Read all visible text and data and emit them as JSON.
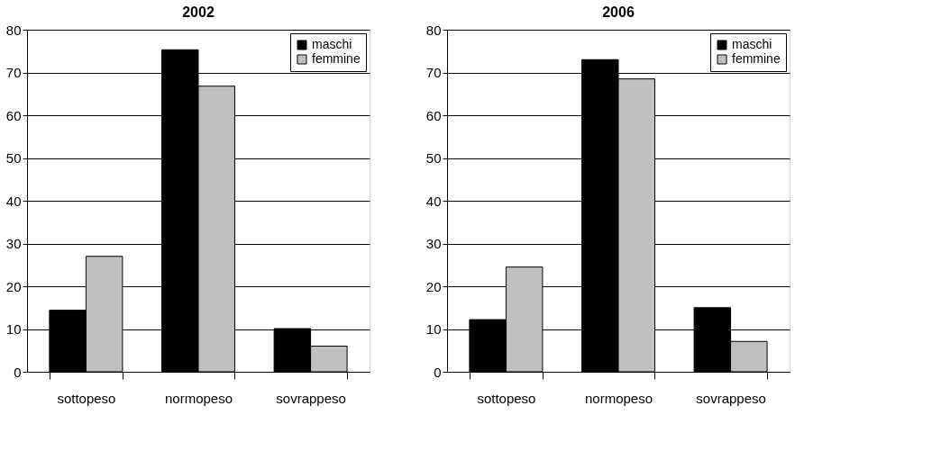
{
  "chart_data": [
    {
      "type": "bar",
      "title": "2002",
      "categories": [
        "sottopeso",
        "normopeso",
        "sovrappeso"
      ],
      "series": [
        {
          "name": "maschi",
          "color": "#000000",
          "values": [
            14.4,
            75.3,
            10.1
          ]
        },
        {
          "name": "femmine",
          "color": "#c0c0c0",
          "values": [
            27.0,
            66.8,
            6.0
          ]
        }
      ],
      "ylim": [
        0,
        80
      ],
      "yticks": [
        0,
        10,
        20,
        30,
        40,
        50,
        60,
        70,
        80
      ],
      "grid": "y",
      "legend": "top right"
    },
    {
      "type": "bar",
      "title": "2006",
      "categories": [
        "sottopeso",
        "normopeso",
        "sovrappeso"
      ],
      "series": [
        {
          "name": "maschi",
          "color": "#000000",
          "values": [
            12.2,
            73.0,
            15.0
          ]
        },
        {
          "name": "femmine",
          "color": "#c0c0c0",
          "values": [
            24.5,
            68.5,
            7.1
          ]
        }
      ],
      "ylim": [
        0,
        80
      ],
      "yticks": [
        0,
        10,
        20,
        30,
        40,
        50,
        60,
        70,
        80
      ],
      "grid": "y",
      "legend": "top right"
    }
  ]
}
